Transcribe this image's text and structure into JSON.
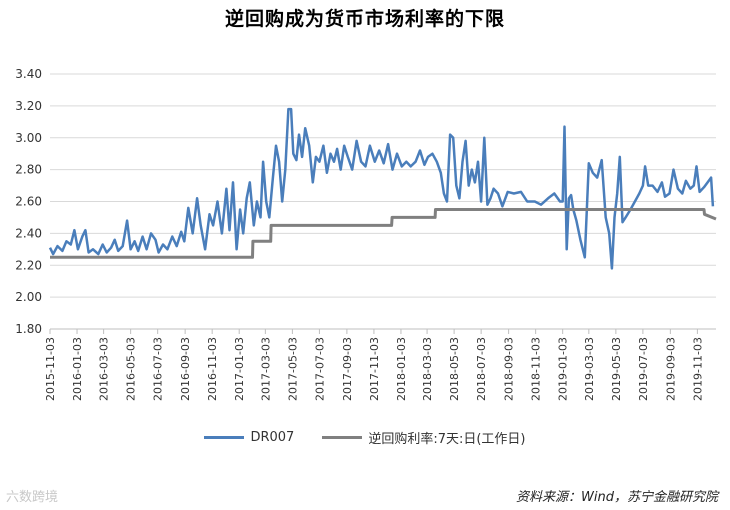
{
  "title": "逆回购成为货币市场利率的下限",
  "source": "资料来源：Wind，苏宁金融研究院",
  "watermark": "六数跨境",
  "colors": {
    "dr007": "#4a7ebb",
    "repo": "#808080"
  },
  "chart_data": {
    "type": "line",
    "title": "逆回购成为货币市场利率的下限",
    "ylim": [
      1.8,
      3.4
    ],
    "yticks": [
      "1.80",
      "2.00",
      "2.20",
      "2.40",
      "2.60",
      "2.80",
      "3.00",
      "3.20",
      "3.40"
    ],
    "x_range": [
      "2015-11-03",
      "2019-12-15"
    ],
    "xticks": [
      "2015-11-03",
      "2016-01-03",
      "2016-03-03",
      "2016-05-03",
      "2016-07-03",
      "2016-09-03",
      "2016-11-03",
      "2017-01-03",
      "2017-03-03",
      "2017-05-03",
      "2017-07-03",
      "2017-09-03",
      "2017-11-03",
      "2018-01-03",
      "2018-03-03",
      "2018-05-03",
      "2018-07-03",
      "2018-09-03",
      "2018-11-03",
      "2019-01-03",
      "2019-03-03",
      "2019-05-03",
      "2019-07-03",
      "2019-09-03",
      "2019-11-03"
    ],
    "legend_position": "bottom",
    "series": [
      {
        "name": "DR007",
        "color": "#4a7ebb",
        "points": [
          [
            "2015-11-03",
            2.31
          ],
          [
            "2015-11-10",
            2.27
          ],
          [
            "2015-11-20",
            2.32
          ],
          [
            "2015-12-01",
            2.29
          ],
          [
            "2015-12-10",
            2.35
          ],
          [
            "2015-12-20",
            2.33
          ],
          [
            "2015-12-28",
            2.42
          ],
          [
            "2016-01-05",
            2.3
          ],
          [
            "2016-01-15",
            2.38
          ],
          [
            "2016-01-22",
            2.42
          ],
          [
            "2016-01-29",
            2.28
          ],
          [
            "2016-02-08",
            2.3
          ],
          [
            "2016-02-20",
            2.27
          ],
          [
            "2016-03-01",
            2.33
          ],
          [
            "2016-03-10",
            2.28
          ],
          [
            "2016-03-20",
            2.31
          ],
          [
            "2016-03-28",
            2.36
          ],
          [
            "2016-04-05",
            2.29
          ],
          [
            "2016-04-15",
            2.32
          ],
          [
            "2016-04-25",
            2.48
          ],
          [
            "2016-05-03",
            2.3
          ],
          [
            "2016-05-12",
            2.35
          ],
          [
            "2016-05-20",
            2.29
          ],
          [
            "2016-05-30",
            2.38
          ],
          [
            "2016-06-08",
            2.3
          ],
          [
            "2016-06-18",
            2.4
          ],
          [
            "2016-06-28",
            2.36
          ],
          [
            "2016-07-05",
            2.28
          ],
          [
            "2016-07-15",
            2.33
          ],
          [
            "2016-07-25",
            2.3
          ],
          [
            "2016-08-05",
            2.38
          ],
          [
            "2016-08-15",
            2.32
          ],
          [
            "2016-08-25",
            2.41
          ],
          [
            "2016-09-01",
            2.35
          ],
          [
            "2016-09-10",
            2.56
          ],
          [
            "2016-09-20",
            2.4
          ],
          [
            "2016-09-30",
            2.62
          ],
          [
            "2016-10-08",
            2.45
          ],
          [
            "2016-10-18",
            2.3
          ],
          [
            "2016-10-28",
            2.52
          ],
          [
            "2016-11-05",
            2.45
          ],
          [
            "2016-11-15",
            2.6
          ],
          [
            "2016-11-25",
            2.4
          ],
          [
            "2016-12-05",
            2.68
          ],
          [
            "2016-12-12",
            2.42
          ],
          [
            "2016-12-20",
            2.72
          ],
          [
            "2016-12-28",
            2.3
          ],
          [
            "2017-01-05",
            2.55
          ],
          [
            "2017-01-12",
            2.4
          ],
          [
            "2017-01-20",
            2.62
          ],
          [
            "2017-01-27",
            2.72
          ],
          [
            "2017-02-05",
            2.45
          ],
          [
            "2017-02-12",
            2.6
          ],
          [
            "2017-02-20",
            2.5
          ],
          [
            "2017-02-26",
            2.85
          ],
          [
            "2017-03-05",
            2.6
          ],
          [
            "2017-03-12",
            2.5
          ],
          [
            "2017-03-20",
            2.75
          ],
          [
            "2017-03-27",
            2.95
          ],
          [
            "2017-04-03",
            2.85
          ],
          [
            "2017-04-10",
            2.6
          ],
          [
            "2017-04-17",
            2.8
          ],
          [
            "2017-04-24",
            3.18
          ],
          [
            "2017-04-30",
            3.18
          ],
          [
            "2017-05-05",
            2.9
          ],
          [
            "2017-05-12",
            2.86
          ],
          [
            "2017-05-18",
            3.02
          ],
          [
            "2017-05-25",
            2.88
          ],
          [
            "2017-06-01",
            3.06
          ],
          [
            "2017-06-10",
            2.95
          ],
          [
            "2017-06-18",
            2.72
          ],
          [
            "2017-06-25",
            2.88
          ],
          [
            "2017-07-03",
            2.85
          ],
          [
            "2017-07-12",
            2.95
          ],
          [
            "2017-07-20",
            2.78
          ],
          [
            "2017-07-28",
            2.9
          ],
          [
            "2017-08-05",
            2.85
          ],
          [
            "2017-08-12",
            2.93
          ],
          [
            "2017-08-20",
            2.8
          ],
          [
            "2017-08-28",
            2.95
          ],
          [
            "2017-09-05",
            2.88
          ],
          [
            "2017-09-15",
            2.8
          ],
          [
            "2017-09-25",
            2.98
          ],
          [
            "2017-10-05",
            2.85
          ],
          [
            "2017-10-15",
            2.82
          ],
          [
            "2017-10-25",
            2.95
          ],
          [
            "2017-11-05",
            2.85
          ],
          [
            "2017-11-15",
            2.92
          ],
          [
            "2017-11-25",
            2.84
          ],
          [
            "2017-12-05",
            2.96
          ],
          [
            "2017-12-15",
            2.8
          ],
          [
            "2017-12-25",
            2.9
          ],
          [
            "2018-01-05",
            2.82
          ],
          [
            "2018-01-15",
            2.85
          ],
          [
            "2018-01-25",
            2.82
          ],
          [
            "2018-02-05",
            2.85
          ],
          [
            "2018-02-15",
            2.92
          ],
          [
            "2018-02-25",
            2.83
          ],
          [
            "2018-03-05",
            2.88
          ],
          [
            "2018-03-15",
            2.9
          ],
          [
            "2018-03-25",
            2.85
          ],
          [
            "2018-04-03",
            2.78
          ],
          [
            "2018-04-10",
            2.65
          ],
          [
            "2018-04-17",
            2.6
          ],
          [
            "2018-04-24",
            3.02
          ],
          [
            "2018-05-01",
            3.0
          ],
          [
            "2018-05-08",
            2.7
          ],
          [
            "2018-05-15",
            2.62
          ],
          [
            "2018-05-22",
            2.85
          ],
          [
            "2018-05-29",
            2.98
          ],
          [
            "2018-06-05",
            2.7
          ],
          [
            "2018-06-12",
            2.8
          ],
          [
            "2018-06-19",
            2.72
          ],
          [
            "2018-06-26",
            2.85
          ],
          [
            "2018-07-03",
            2.6
          ],
          [
            "2018-07-10",
            3.0
          ],
          [
            "2018-07-17",
            2.58
          ],
          [
            "2018-07-24",
            2.62
          ],
          [
            "2018-07-31",
            2.68
          ],
          [
            "2018-08-10",
            2.65
          ],
          [
            "2018-08-20",
            2.57
          ],
          [
            "2018-09-01",
            2.66
          ],
          [
            "2018-09-15",
            2.65
          ],
          [
            "2018-10-01",
            2.66
          ],
          [
            "2018-10-15",
            2.6
          ],
          [
            "2018-11-01",
            2.6
          ],
          [
            "2018-11-15",
            2.58
          ],
          [
            "2018-12-01",
            2.62
          ],
          [
            "2018-12-15",
            2.65
          ],
          [
            "2018-12-28",
            2.6
          ],
          [
            "2019-01-03",
            2.6
          ],
          [
            "2019-01-07",
            3.07
          ],
          [
            "2019-01-12",
            2.3
          ],
          [
            "2019-01-17",
            2.62
          ],
          [
            "2019-01-22",
            2.64
          ],
          [
            "2019-01-27",
            2.55
          ],
          [
            "2019-02-03",
            2.48
          ],
          [
            "2019-02-12",
            2.36
          ],
          [
            "2019-02-22",
            2.25
          ],
          [
            "2019-03-03",
            2.84
          ],
          [
            "2019-03-12",
            2.78
          ],
          [
            "2019-03-22",
            2.75
          ],
          [
            "2019-04-01",
            2.86
          ],
          [
            "2019-04-10",
            2.5
          ],
          [
            "2019-04-18",
            2.4
          ],
          [
            "2019-04-24",
            2.18
          ],
          [
            "2019-04-30",
            2.5
          ],
          [
            "2019-05-06",
            2.65
          ],
          [
            "2019-05-12",
            2.88
          ],
          [
            "2019-05-18",
            2.47
          ],
          [
            "2019-05-25",
            2.5
          ],
          [
            "2019-06-05",
            2.55
          ],
          [
            "2019-06-15",
            2.6
          ],
          [
            "2019-06-25",
            2.65
          ],
          [
            "2019-07-03",
            2.7
          ],
          [
            "2019-07-08",
            2.82
          ],
          [
            "2019-07-15",
            2.7
          ],
          [
            "2019-07-25",
            2.7
          ],
          [
            "2019-08-05",
            2.66
          ],
          [
            "2019-08-15",
            2.72
          ],
          [
            "2019-08-22",
            2.63
          ],
          [
            "2019-09-01",
            2.65
          ],
          [
            "2019-09-10",
            2.8
          ],
          [
            "2019-09-20",
            2.68
          ],
          [
            "2019-09-30",
            2.65
          ],
          [
            "2019-10-08",
            2.73
          ],
          [
            "2019-10-18",
            2.68
          ],
          [
            "2019-10-26",
            2.7
          ],
          [
            "2019-11-01",
            2.82
          ],
          [
            "2019-11-08",
            2.66
          ],
          [
            "2019-11-18",
            2.69
          ],
          [
            "2019-11-26",
            2.72
          ],
          [
            "2019-12-04",
            2.75
          ],
          [
            "2019-12-08",
            2.57
          ]
        ]
      },
      {
        "name": "逆回购利率:7天:日(工作日)",
        "color": "#808080",
        "points": [
          [
            "2015-11-03",
            2.25
          ],
          [
            "2017-02-02",
            2.25
          ],
          [
            "2017-02-03",
            2.35
          ],
          [
            "2017-03-15",
            2.35
          ],
          [
            "2017-03-16",
            2.45
          ],
          [
            "2017-12-13",
            2.45
          ],
          [
            "2017-12-14",
            2.5
          ],
          [
            "2018-03-21",
            2.5
          ],
          [
            "2018-03-22",
            2.55
          ],
          [
            "2019-11-18",
            2.55
          ],
          [
            "2019-11-19",
            2.52
          ],
          [
            "2019-12-15",
            2.49
          ]
        ]
      }
    ]
  }
}
